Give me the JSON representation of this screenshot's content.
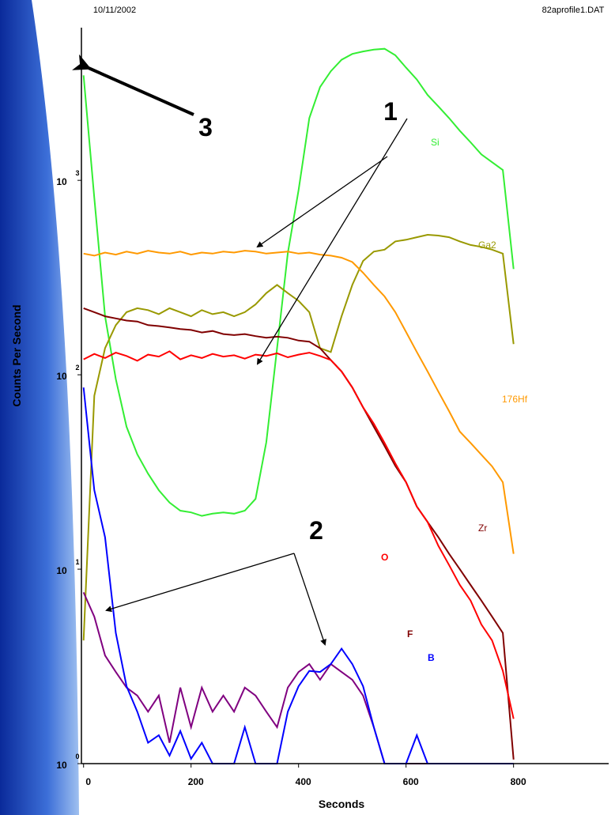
{
  "header": {
    "date": "10/11/2002",
    "file": "82aprofile1.DAT"
  },
  "chart_data": {
    "type": "line",
    "y_axis_label": "Counts Per Second",
    "x_axis_label": "Seconds",
    "log_scale_y": true,
    "xlim": [
      -4,
      977
    ],
    "xticks": [
      0,
      200,
      400,
      600,
      800
    ],
    "ylim": [
      1,
      6100
    ],
    "yticks": [
      {
        "value": 1,
        "label": "10",
        "exponent": "0"
      },
      {
        "value": 10,
        "label": "10",
        "exponent": "1"
      },
      {
        "value": 100,
        "label": "10",
        "exponent": "2"
      },
      {
        "value": 1000,
        "label": "10",
        "exponent": "3"
      }
    ],
    "x": [
      0,
      20,
      40,
      60,
      80,
      100,
      120,
      140,
      160,
      180,
      200,
      220,
      240,
      260,
      280,
      300,
      320,
      340,
      360,
      380,
      400,
      420,
      440,
      460,
      480,
      500,
      520,
      540,
      560,
      580,
      600,
      620,
      640,
      660,
      680,
      700,
      720,
      740,
      760,
      780,
      800
    ],
    "series": [
      {
        "name": "Si",
        "color": "#33ee33",
        "label_color": "#33ee33",
        "values": [
          3470,
          813,
          200,
          95,
          54,
          39,
          31,
          25.5,
          22,
          20,
          19.6,
          18.8,
          19.3,
          19.6,
          19.3,
          20,
          23,
          45,
          137,
          423,
          890,
          2090,
          3020,
          3640,
          4170,
          4470,
          4600,
          4700,
          4750,
          4400,
          3800,
          3300,
          2750,
          2400,
          2090,
          1800,
          1570,
          1360,
          1240,
          1130,
          350
        ]
      },
      {
        "name": "Ga2",
        "color": "#999900",
        "label_color": "#999900",
        "values": [
          4.3,
          78,
          137,
          180,
          210,
          220,
          215,
          205,
          220,
          210,
          200,
          215,
          205,
          210,
          200,
          210,
          230,
          263,
          290,
          263,
          240,
          210,
          137,
          131,
          200,
          290,
          385,
          430,
          440,
          485,
          495,
          510,
          525,
          520,
          510,
          485,
          465,
          455,
          440,
          420,
          144
        ]
      },
      {
        "name": "176Hf",
        "color": "#ff9900",
        "label_color": "#ff9900",
        "values": [
          420,
          410,
          425,
          415,
          430,
          420,
          435,
          425,
          420,
          430,
          415,
          425,
          420,
          430,
          425,
          435,
          430,
          420,
          425,
          430,
          420,
          425,
          415,
          410,
          400,
          380,
          335,
          290,
          253,
          210,
          166,
          131,
          104,
          82,
          65,
          51,
          44.6,
          38.8,
          33.8,
          28,
          12
        ]
      },
      {
        "name": "Zr",
        "color": "#800000",
        "label_color": "#800000",
        "values": [
          220,
          210,
          200,
          195,
          190,
          188,
          180,
          178,
          175,
          172,
          170,
          165,
          168,
          162,
          160,
          162,
          158,
          155,
          157,
          155,
          150,
          148,
          137,
          119,
          104,
          86,
          68,
          54,
          43,
          34,
          28,
          21,
          17.5,
          14.6,
          12,
          10,
          8.3,
          6.9,
          5.7,
          4.7,
          1.05
        ]
      },
      {
        "name": "O",
        "color": "#ff0000",
        "label_color": "#ff0000",
        "values": [
          120,
          128,
          122,
          130,
          125,
          118,
          127,
          124,
          132,
          120,
          126,
          122,
          128,
          124,
          126,
          121,
          127,
          125,
          129,
          123,
          127,
          130,
          125,
          119,
          104,
          86,
          68,
          56,
          44.6,
          35,
          28,
          21,
          17.5,
          13.2,
          10.5,
          8.3,
          6.9,
          5.2,
          4.3,
          3.0,
          1.7
        ]
      },
      {
        "name": "F",
        "color": "#800080",
        "label_color": "#800000",
        "values": [
          7.6,
          5.7,
          3.6,
          2.96,
          2.46,
          2.24,
          1.85,
          2.24,
          1.28,
          2.46,
          1.54,
          2.46,
          1.85,
          2.24,
          1.85,
          2.46,
          2.24,
          1.85,
          1.54,
          2.46,
          2.96,
          3.25,
          2.7,
          3.25,
          2.96,
          2.7,
          2.24,
          1.54,
          1.0,
          1.0,
          1.0,
          1.0,
          1.0,
          1.0,
          1.0,
          1.0,
          1.0,
          1.0,
          1.0,
          1.0,
          1.0
        ]
      },
      {
        "name": "B",
        "color": "#0000ff",
        "label_color": "#0000ff",
        "values": [
          86,
          25.5,
          14.6,
          4.7,
          2.5,
          1.85,
          1.28,
          1.4,
          1.1,
          1.47,
          1.06,
          1.28,
          1.0,
          1.0,
          1.0,
          1.54,
          1.0,
          1.0,
          1.0,
          1.85,
          2.5,
          3.0,
          2.96,
          3.25,
          3.9,
          3.25,
          2.5,
          1.54,
          1.0,
          1.0,
          1.0,
          1.4,
          1.0,
          1.0,
          1.0,
          1.0,
          1.0,
          1.0,
          1.0,
          1.0,
          1.0
        ]
      }
    ],
    "annotations": [
      {
        "text": "1"
      },
      {
        "text": "2"
      },
      {
        "text": "3"
      }
    ]
  }
}
